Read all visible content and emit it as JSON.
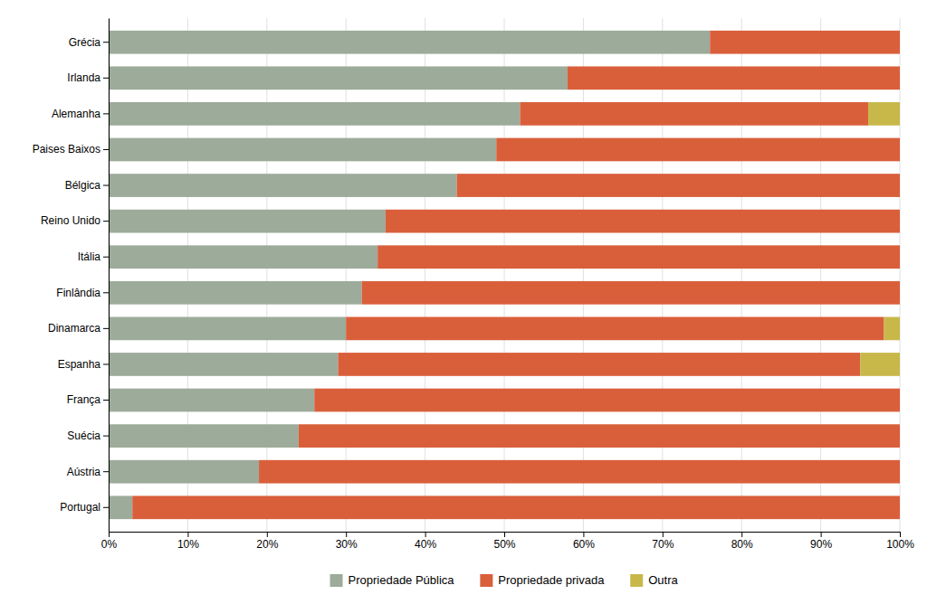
{
  "chart_data": {
    "type": "bar",
    "orientation": "horizontal",
    "stacked": true,
    "categories": [
      "Grécia",
      "Irlanda",
      "Alemanha",
      "Paises Baixos",
      "Bélgica",
      "Reino Unido",
      "Itália",
      "Finlândia",
      "Dinamarca",
      "Espanha",
      "França",
      "Suécia",
      "Aústria",
      "Portugal"
    ],
    "series": [
      {
        "name": "Propriedade Pública",
        "color": "#9dab9a",
        "values": [
          76,
          58,
          52,
          49,
          44,
          35,
          34,
          32,
          30,
          29,
          26,
          24,
          19,
          3
        ]
      },
      {
        "name": "Propriedade privada",
        "color": "#d95f3b",
        "values": [
          24,
          42,
          44,
          51,
          56,
          65,
          66,
          68,
          68,
          66,
          74,
          76,
          81,
          97
        ]
      },
      {
        "name": "Outra",
        "color": "#c8b84a",
        "values": [
          0,
          0,
          4,
          0,
          0,
          0,
          0,
          0,
          2,
          5,
          0,
          0,
          0,
          0
        ]
      }
    ],
    "xlim": [
      0,
      100
    ],
    "xticks": [
      {
        "value": 0,
        "label": "0%"
      },
      {
        "value": 10,
        "label": "10%"
      },
      {
        "value": 20,
        "label": "20%"
      },
      {
        "value": 30,
        "label": "30%"
      },
      {
        "value": 40,
        "label": "40%"
      },
      {
        "value": 50,
        "label": "50%"
      },
      {
        "value": 60,
        "label": "60%"
      },
      {
        "value": 70,
        "label": "70%"
      },
      {
        "value": 80,
        "label": "80%"
      },
      {
        "value": 90,
        "label": "90%"
      },
      {
        "value": 100,
        "label": "100%"
      }
    ],
    "grid": true,
    "legend": "bottom"
  }
}
